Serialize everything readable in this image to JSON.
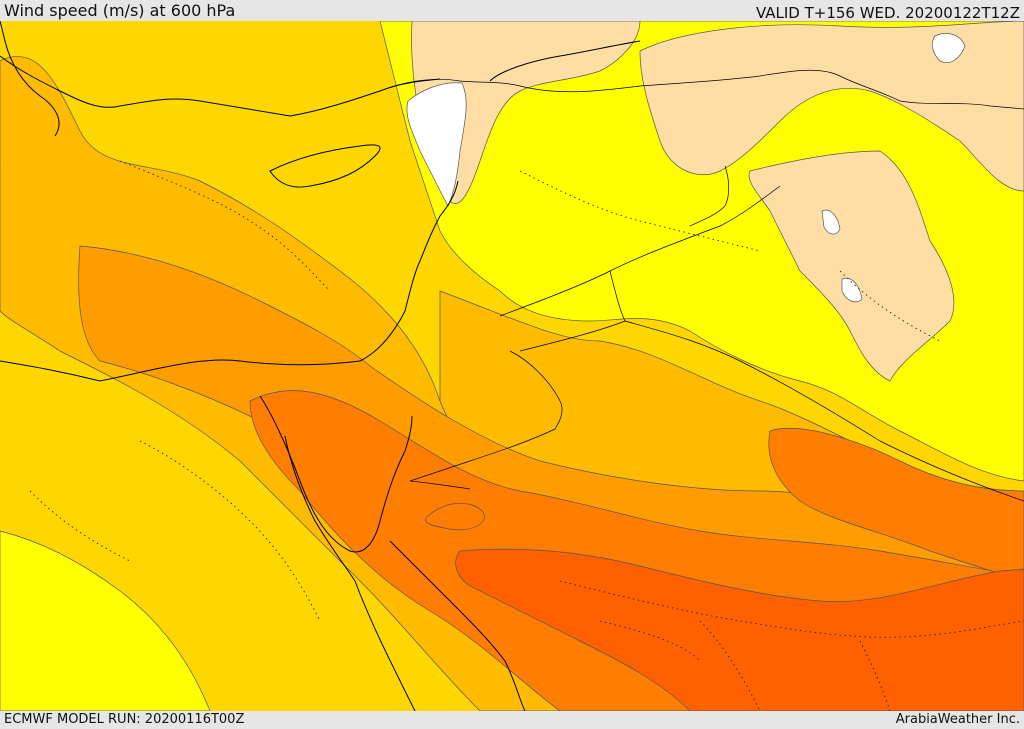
{
  "header": {
    "title": "Wind speed (m/s) at 600 hPa",
    "valid": "VALID T+156 WED. 20200122T12Z"
  },
  "footer": {
    "model_run": "ECMWF MODEL RUN: 20200116T00Z",
    "provider": "ArabiaWeather Inc."
  },
  "colors": {
    "white": "#ffffff",
    "wheat": "#ffdea6",
    "yellow": "#ffff00",
    "gold": "#ffd700",
    "light_orange": "#ffbb00",
    "orange": "#ff9d00",
    "dark_orange": "#ff7d00",
    "red_orange": "#ff6000",
    "border": "#000000"
  }
}
